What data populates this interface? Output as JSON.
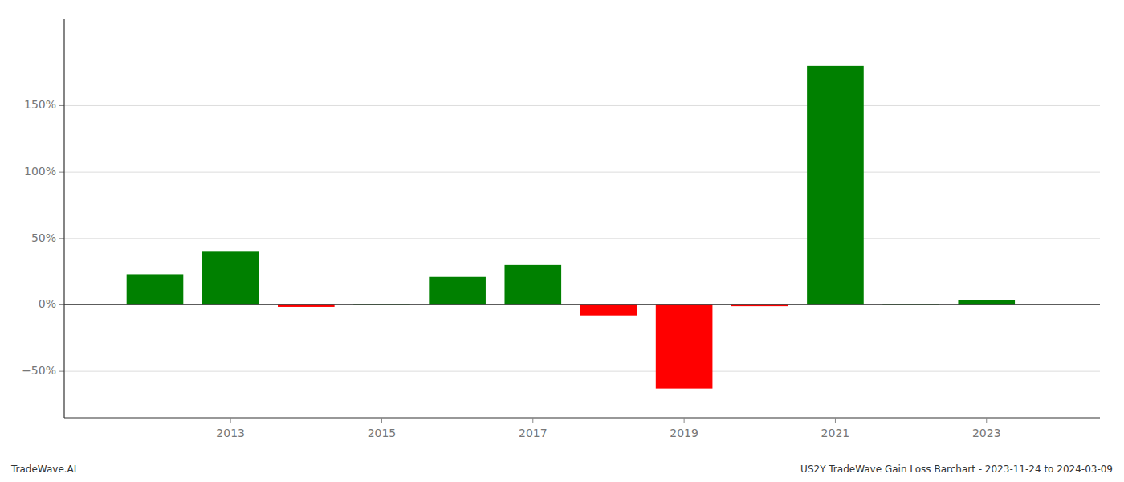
{
  "chart_data": {
    "type": "bar",
    "x": [
      2012,
      2013,
      2014,
      2015,
      2016,
      2017,
      2018,
      2019,
      2020,
      2021,
      2022,
      2023
    ],
    "values": [
      23.0,
      40.0,
      -1.5,
      0.5,
      21.0,
      30.0,
      -8.0,
      -63.0,
      -1.0,
      180.0,
      0.3,
      3.5
    ],
    "colors": [
      "#008000",
      "#008000",
      "#ff0000",
      "#008000",
      "#008000",
      "#008000",
      "#ff0000",
      "#ff0000",
      "#ff0000",
      "#008000",
      "#008000",
      "#008000"
    ],
    "xlim": [
      2010.8,
      2024.5
    ],
    "xticks": [
      2013,
      2015,
      2017,
      2019,
      2021,
      2023
    ],
    "ylim": [
      -85,
      215
    ],
    "yticks": [
      {
        "value": -50,
        "label": "−50%"
      },
      {
        "value": 0,
        "label": "0%"
      },
      {
        "value": 50,
        "label": "50%"
      },
      {
        "value": 100,
        "label": "100%"
      },
      {
        "value": 150,
        "label": "150%"
      }
    ],
    "grid": true,
    "annotations": [
      "TradeWave.AI",
      "US2Y TradeWave Gain Loss Barchart - 2023-11-24 to 2024-03-09"
    ]
  }
}
